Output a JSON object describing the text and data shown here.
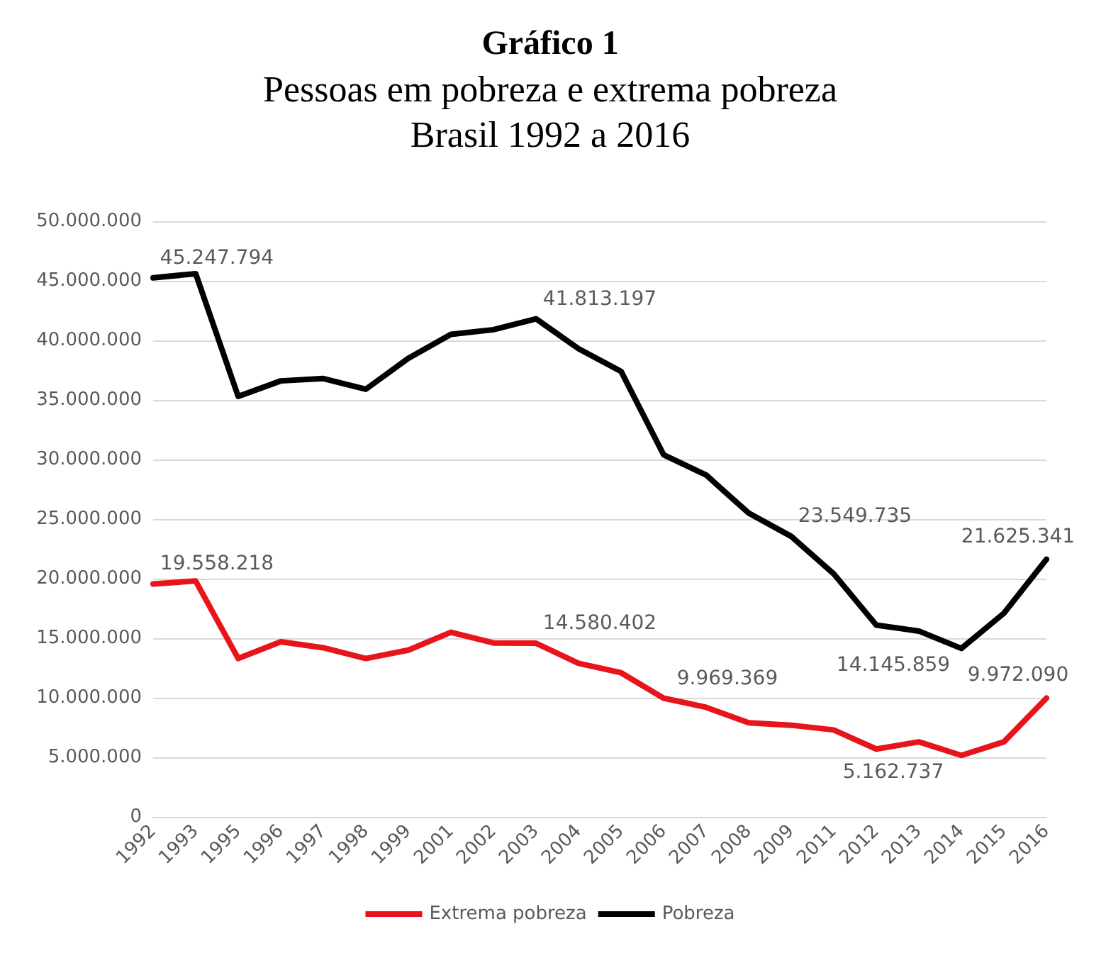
{
  "chart_data": {
    "type": "line",
    "title": "Gráfico 1",
    "subtitle": "Pessoas em pobreza e extrema pobreza\nBrasil 1992 a 2016",
    "categories": [
      "1992",
      "1993",
      "1995",
      "1996",
      "1997",
      "1998",
      "1999",
      "2001",
      "2002",
      "2003",
      "2004",
      "2005",
      "2006",
      "2007",
      "2008",
      "2009",
      "2011",
      "2012",
      "2013",
      "2014",
      "2015",
      "2016"
    ],
    "series": [
      {
        "name": "Extrema pobreza",
        "color": "#e8141b",
        "values": [
          19558218,
          19800000,
          13300000,
          14700000,
          14200000,
          13300000,
          14000000,
          15500000,
          14600000,
          14580402,
          12900000,
          12100000,
          9969369,
          9200000,
          7900000,
          7700000,
          7300000,
          5700000,
          6300000,
          5162737,
          6300000,
          9972090
        ],
        "value_labels": [
          "19.558.218",
          null,
          null,
          null,
          null,
          null,
          null,
          null,
          null,
          "14.580.402",
          null,
          null,
          "9.969.369",
          null,
          null,
          null,
          null,
          null,
          null,
          "5.162.737",
          null,
          "9.972.090"
        ]
      },
      {
        "name": "Pobreza",
        "color": "#000000",
        "values": [
          45247794,
          45600000,
          35300000,
          36600000,
          36800000,
          35900000,
          38500000,
          40500000,
          40900000,
          41813197,
          39300000,
          37400000,
          30400000,
          28700000,
          25500000,
          23549735,
          20400000,
          16100000,
          15600000,
          14145859,
          17100000,
          21625341
        ],
        "value_labels": [
          "45.247.794",
          null,
          null,
          null,
          null,
          null,
          null,
          null,
          null,
          "41.813.197",
          null,
          null,
          null,
          null,
          null,
          "23.549.735",
          null,
          null,
          null,
          "14.145.859",
          null,
          "21.625.341"
        ]
      }
    ],
    "ylim": [
      0,
      50000000
    ],
    "yticks": [
      0,
      {
        "value": 5000000,
        "label": "5.000.000"
      },
      {
        "value": 10000000,
        "label": "10.000.000"
      },
      {
        "value": 15000000,
        "label": "15.000.000"
      },
      {
        "value": 20000000,
        "label": "20.000.000"
      },
      {
        "value": 25000000,
        "label": "25.000.000"
      },
      {
        "value": 30000000,
        "label": "30.000.000"
      },
      {
        "value": 35000000,
        "label": "35.000.000"
      },
      {
        "value": 40000000,
        "label": "40.000.000"
      },
      {
        "value": 45000000,
        "label": "45.000.000"
      },
      {
        "value": 50000000,
        "label": "50.000.000"
      }
    ],
    "grid": "y",
    "legend": "bottom",
    "marker": "none",
    "line_style": "solid"
  }
}
